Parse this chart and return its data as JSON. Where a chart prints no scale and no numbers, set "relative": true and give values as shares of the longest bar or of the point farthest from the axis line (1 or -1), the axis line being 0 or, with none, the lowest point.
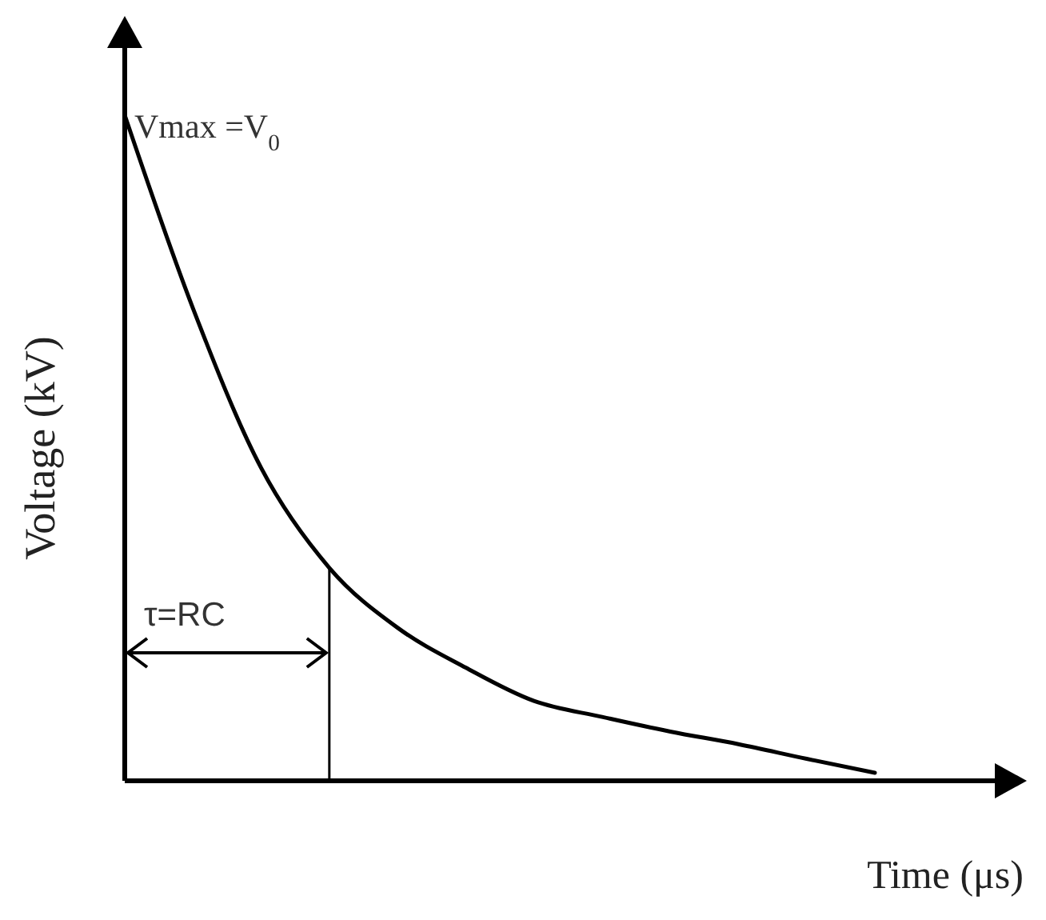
{
  "chart_data": {
    "type": "line",
    "xlabel": "Time (μs)",
    "ylabel": "Voltage (kV)",
    "relative": true,
    "categories": [
      null,
      null,
      null,
      null,
      null,
      null,
      null,
      null,
      null,
      null,
      null,
      null
    ],
    "series": [
      {
        "color": "#000000",
        "values": [
          1,
          0.71,
          0.47,
          0.32,
          0.23,
          0.17,
          0.12,
          0.096,
          0.074,
          0.055,
          0.033,
          0.012
        ]
      }
    ],
    "annotations": [
      "Vmax =V$_{0}$",
      "τ=RC"
    ],
    "marker": "none",
    "line_style": "solid"
  }
}
